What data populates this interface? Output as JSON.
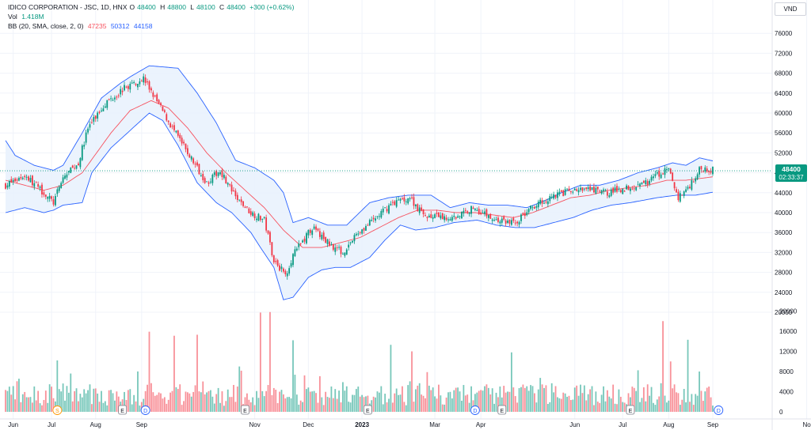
{
  "header": {
    "symbol": "IDICO CORPORATION - JSC, 1D, HNX",
    "open_label": "O",
    "open": "48400",
    "high_label": "H",
    "high": "48800",
    "low_label": "L",
    "low": "48100",
    "close_label": "C",
    "close": "48400",
    "change": "+300 (+0.62%)",
    "vol_label": "Vol",
    "vol": "1.418M",
    "bb_label": "BB (20, SMA, close, 2, 0)",
    "bb_middle": "47235",
    "bb_upper": "50312",
    "bb_lower": "44158"
  },
  "currency": "VND",
  "last_price": "48400",
  "countdown": "02:33:37",
  "colors": {
    "up": "#089981",
    "down": "#f23645",
    "basis": "#f7525f",
    "band": "#2962ff",
    "band_fill": "#e8f1fd",
    "grid": "#f0f3fa",
    "axis_text": "#131722"
  },
  "chart_data": {
    "type": "candlestick",
    "price_axis": {
      "ticks": [
        76000,
        72000,
        68000,
        64000,
        60000,
        56000,
        52000,
        48000,
        44000,
        40000,
        36000,
        32000,
        28000,
        24000,
        20000
      ],
      "range": [
        20000,
        78000
      ]
    },
    "volume_axis": {
      "ticks": [
        20000,
        16000,
        12000,
        8000,
        4000,
        0
      ],
      "range": [
        0,
        20000
      ]
    },
    "x_labels": [
      "Jun",
      "Jul",
      "Aug",
      "Sep",
      "Nov",
      "Dec",
      "2023",
      "Mar",
      "Apr",
      "Jun",
      "Jul",
      "Aug",
      "Sep",
      "No"
    ],
    "x_label_positions_index": [
      4,
      24,
      47,
      71,
      130,
      158,
      186,
      224,
      248,
      297,
      322,
      346,
      369,
      418
    ],
    "bars": 370,
    "keypoints_close": [
      [
        0,
        45500
      ],
      [
        10,
        47500
      ],
      [
        20,
        44000
      ],
      [
        25,
        42000
      ],
      [
        30,
        47000
      ],
      [
        38,
        50000
      ],
      [
        43,
        57000
      ],
      [
        52,
        62000
      ],
      [
        62,
        65000
      ],
      [
        72,
        67000
      ],
      [
        78,
        63000
      ],
      [
        87,
        57000
      ],
      [
        95,
        52000
      ],
      [
        105,
        46000
      ],
      [
        112,
        48500
      ],
      [
        120,
        43000
      ],
      [
        128,
        40000
      ],
      [
        135,
        38500
      ],
      [
        140,
        30500
      ],
      [
        146,
        27500
      ],
      [
        150,
        31500
      ],
      [
        160,
        37000
      ],
      [
        168,
        34000
      ],
      [
        176,
        32000
      ],
      [
        184,
        36000
      ],
      [
        192,
        38500
      ],
      [
        202,
        42000
      ],
      [
        211,
        43000
      ],
      [
        218,
        39500
      ],
      [
        226,
        39000
      ],
      [
        234,
        39000
      ],
      [
        244,
        41000
      ],
      [
        256,
        38500
      ],
      [
        266,
        38000
      ],
      [
        276,
        41500
      ],
      [
        286,
        43500
      ],
      [
        296,
        44500
      ],
      [
        306,
        44500
      ],
      [
        314,
        44000
      ],
      [
        324,
        45000
      ],
      [
        334,
        46000
      ],
      [
        342,
        48000
      ],
      [
        346,
        48500
      ],
      [
        351,
        43000
      ],
      [
        356,
        45000
      ],
      [
        362,
        48500
      ],
      [
        365,
        49000
      ],
      [
        370,
        48400
      ]
    ],
    "keypoints_basis": [
      [
        0,
        46500
      ],
      [
        20,
        44500
      ],
      [
        30,
        45500
      ],
      [
        40,
        48000
      ],
      [
        55,
        56000
      ],
      [
        65,
        60500
      ],
      [
        76,
        62500
      ],
      [
        85,
        61000
      ],
      [
        95,
        57000
      ],
      [
        105,
        52000
      ],
      [
        115,
        48000
      ],
      [
        125,
        44500
      ],
      [
        135,
        41000
      ],
      [
        145,
        36500
      ],
      [
        155,
        33000
      ],
      [
        165,
        33000
      ],
      [
        175,
        34000
      ],
      [
        185,
        35000
      ],
      [
        195,
        37000
      ],
      [
        205,
        39000
      ],
      [
        215,
        40500
      ],
      [
        225,
        40500
      ],
      [
        235,
        40000
      ],
      [
        245,
        40000
      ],
      [
        255,
        39500
      ],
      [
        265,
        39000
      ],
      [
        275,
        40000
      ],
      [
        285,
        41500
      ],
      [
        295,
        43000
      ],
      [
        305,
        43500
      ],
      [
        315,
        44500
      ],
      [
        325,
        45000
      ],
      [
        335,
        45500
      ],
      [
        345,
        46500
      ],
      [
        355,
        46500
      ],
      [
        370,
        47235
      ]
    ],
    "keypoints_upper": [
      [
        0,
        54500
      ],
      [
        5,
        51500
      ],
      [
        15,
        49500
      ],
      [
        25,
        48500
      ],
      [
        30,
        49500
      ],
      [
        40,
        56000
      ],
      [
        50,
        63000
      ],
      [
        60,
        66000
      ],
      [
        66,
        67500
      ],
      [
        75,
        69500
      ],
      [
        90,
        69000
      ],
      [
        100,
        64000
      ],
      [
        110,
        58000
      ],
      [
        120,
        50500
      ],
      [
        130,
        49000
      ],
      [
        140,
        46500
      ],
      [
        145,
        44000
      ],
      [
        150,
        38000
      ],
      [
        158,
        39000
      ],
      [
        168,
        37500
      ],
      [
        178,
        37500
      ],
      [
        190,
        42000
      ],
      [
        200,
        43000
      ],
      [
        210,
        43500
      ],
      [
        222,
        43500
      ],
      [
        232,
        41000
      ],
      [
        242,
        42000
      ],
      [
        252,
        41500
      ],
      [
        262,
        41500
      ],
      [
        272,
        41000
      ],
      [
        282,
        42500
      ],
      [
        290,
        44000
      ],
      [
        300,
        45500
      ],
      [
        310,
        45500
      ],
      [
        320,
        46500
      ],
      [
        330,
        48000
      ],
      [
        340,
        49000
      ],
      [
        348,
        50000
      ],
      [
        355,
        49500
      ],
      [
        362,
        51000
      ],
      [
        370,
        50312
      ]
    ],
    "keypoints_lower": [
      [
        0,
        40000
      ],
      [
        10,
        41000
      ],
      [
        20,
        40000
      ],
      [
        25,
        40500
      ],
      [
        30,
        41500
      ],
      [
        40,
        42000
      ],
      [
        45,
        48000
      ],
      [
        55,
        53000
      ],
      [
        65,
        56500
      ],
      [
        75,
        60000
      ],
      [
        82,
        58500
      ],
      [
        90,
        53500
      ],
      [
        100,
        46000
      ],
      [
        110,
        42000
      ],
      [
        118,
        40000
      ],
      [
        128,
        36000
      ],
      [
        133,
        33000
      ],
      [
        140,
        29000
      ],
      [
        145,
        22500
      ],
      [
        150,
        23000
      ],
      [
        158,
        27000
      ],
      [
        165,
        28500
      ],
      [
        172,
        29000
      ],
      [
        180,
        29000
      ],
      [
        190,
        31000
      ],
      [
        198,
        34500
      ],
      [
        206,
        37500
      ],
      [
        214,
        36500
      ],
      [
        224,
        37000
      ],
      [
        234,
        38000
      ],
      [
        246,
        38500
      ],
      [
        256,
        37500
      ],
      [
        266,
        37000
      ],
      [
        276,
        37000
      ],
      [
        286,
        38000
      ],
      [
        296,
        39000
      ],
      [
        306,
        40500
      ],
      [
        316,
        41500
      ],
      [
        326,
        42000
      ],
      [
        340,
        43000
      ],
      [
        350,
        43500
      ],
      [
        360,
        43500
      ],
      [
        370,
        44158
      ]
    ],
    "volume_peaks": [
      [
        2,
        5000
      ],
      [
        27,
        10200
      ],
      [
        34,
        7600
      ],
      [
        75,
        15900
      ],
      [
        88,
        15100
      ],
      [
        100,
        15300
      ],
      [
        133,
        19700
      ],
      [
        138,
        19800
      ],
      [
        150,
        14200
      ],
      [
        201,
        13300
      ],
      [
        212,
        12000
      ],
      [
        264,
        11800
      ],
      [
        343,
        18000
      ],
      [
        347,
        10000
      ],
      [
        356,
        14300
      ],
      [
        362,
        8000
      ]
    ],
    "events": [
      {
        "index": 27,
        "label": "S",
        "kind": "split"
      },
      {
        "index": 61,
        "label": "E",
        "kind": "earnings"
      },
      {
        "index": 73,
        "label": "D",
        "kind": "dividend"
      },
      {
        "index": 125,
        "label": "E",
        "kind": "earnings"
      },
      {
        "index": 189,
        "label": "E",
        "kind": "earnings"
      },
      {
        "index": 245,
        "label": "D",
        "kind": "dividend"
      },
      {
        "index": 259,
        "label": "E",
        "kind": "earnings"
      },
      {
        "index": 326,
        "label": "E",
        "kind": "earnings"
      },
      {
        "index": 372,
        "label": "D",
        "kind": "dividend"
      }
    ]
  }
}
